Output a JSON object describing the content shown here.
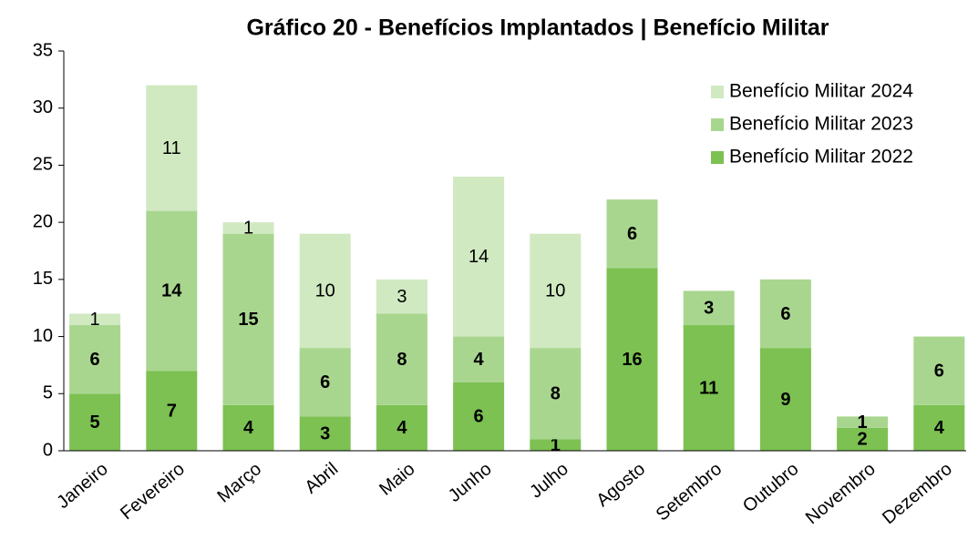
{
  "chart_data": {
    "type": "bar",
    "stacked": true,
    "title": "Gráfico 20 - Benefícios Implantados | Benefício Militar",
    "categories": [
      "Janeiro",
      "Fevereiro",
      "Março",
      "Abril",
      "Maio",
      "Junho",
      "Julho",
      "Agosto",
      "Setembro",
      "Outubro",
      "Novembro",
      "Dezembro"
    ],
    "series": [
      {
        "name": "Benefício Militar 2022",
        "color": "#7cc152",
        "values": [
          5,
          7,
          4,
          3,
          4,
          6,
          1,
          16,
          11,
          9,
          2,
          4
        ]
      },
      {
        "name": "Benefício Militar 2023",
        "color": "#a9d68f",
        "values": [
          6,
          14,
          15,
          6,
          8,
          4,
          8,
          6,
          3,
          6,
          1,
          6
        ]
      },
      {
        "name": "Benefício Militar 2024",
        "color": "#d0e9c1",
        "values": [
          1,
          11,
          1,
          10,
          3,
          14,
          10,
          null,
          null,
          null,
          null,
          null
        ]
      }
    ],
    "ylim": [
      0,
      35
    ],
    "yticks": [
      0,
      5,
      10,
      15,
      20,
      25,
      30,
      35
    ],
    "grid": false,
    "legend": "top-right"
  }
}
